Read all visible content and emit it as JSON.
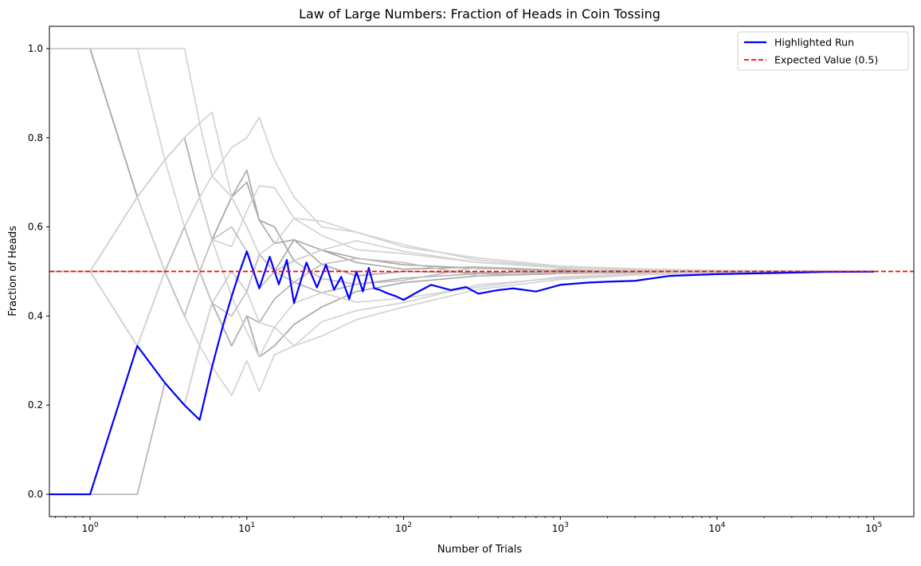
{
  "chart_data": {
    "type": "line",
    "title": "Law of Large Numbers: Fraction of Heads in Coin Tossing",
    "xlabel": "Number of Trials",
    "ylabel": "Fraction of Heads",
    "x_scale": "log",
    "xlim": [
      0.55,
      180000
    ],
    "ylim": [
      -0.05,
      1.05
    ],
    "x_ticks": [
      {
        "value": 1,
        "label": "10^0"
      },
      {
        "value": 10,
        "label": "10^1"
      },
      {
        "value": 100,
        "label": "10^2"
      },
      {
        "value": 1000,
        "label": "10^3"
      },
      {
        "value": 10000,
        "label": "10^4"
      },
      {
        "value": 100000,
        "label": "10^5"
      }
    ],
    "y_ticks": [
      0.0,
      0.2,
      0.4,
      0.6,
      0.8,
      1.0
    ],
    "y_tick_labels": [
      "0.0",
      "0.2",
      "0.4",
      "0.6",
      "0.8",
      "1.0"
    ],
    "grid": false,
    "legend_position": "top-right",
    "legend": [
      {
        "label": "Highlighted Run",
        "color": "#0000ff",
        "style": "solid"
      },
      {
        "label": "Expected Value (0.5)",
        "color": "#ff0000",
        "style": "dashed"
      }
    ],
    "reference_line": {
      "y": 0.5,
      "color": "#ff0000",
      "style": "dashed"
    },
    "highlight_series": {
      "name": "Highlighted Run",
      "color": "#0000ff",
      "x": [
        0.55,
        1,
        2,
        3,
        4,
        5,
        6,
        7,
        8,
        9,
        10,
        12,
        14,
        16,
        18,
        20,
        24,
        28,
        32,
        36,
        40,
        45,
        50,
        55,
        60,
        65,
        70,
        80,
        90,
        100,
        120,
        150,
        200,
        250,
        300,
        400,
        500,
        700,
        1000,
        1500,
        2000,
        3000,
        5000,
        7000,
        10000,
        20000,
        50000,
        100000
      ],
      "y": [
        0.0,
        0.0,
        0.333,
        0.25,
        0.2,
        0.167,
        0.286,
        0.375,
        0.444,
        0.5,
        0.545,
        0.462,
        0.533,
        0.471,
        0.526,
        0.429,
        0.52,
        0.464,
        0.515,
        0.459,
        0.488,
        0.438,
        0.5,
        0.455,
        0.508,
        0.462,
        0.459,
        0.45,
        0.444,
        0.436,
        0.452,
        0.47,
        0.458,
        0.465,
        0.45,
        0.458,
        0.462,
        0.455,
        0.47,
        0.475,
        0.477,
        0.479,
        0.49,
        0.492,
        0.494,
        0.496,
        0.499,
        0.4995
      ]
    },
    "background_series": [
      {
        "color": "#a9a9a9",
        "x": [
          0.55,
          1,
          2,
          3,
          4,
          5,
          6,
          8,
          10,
          12,
          15,
          20,
          30,
          50,
          100,
          300,
          1000,
          3000,
          10000,
          100000
        ],
        "y": [
          1.0,
          1.0,
          0.667,
          0.75,
          0.8,
          0.667,
          0.571,
          0.667,
          0.7,
          0.615,
          0.6,
          0.524,
          0.548,
          0.53,
          0.515,
          0.507,
          0.503,
          0.501,
          0.5005,
          0.5
        ]
      },
      {
        "color": "#a9a9a9",
        "x": [
          0.55,
          1,
          2,
          3,
          4,
          5,
          6,
          8,
          10,
          12,
          15,
          20,
          30,
          50,
          100,
          300,
          1000,
          3000,
          10000,
          100000
        ],
        "y": [
          0.5,
          0.5,
          0.333,
          0.5,
          0.4,
          0.333,
          0.429,
          0.333,
          0.4,
          0.308,
          0.333,
          0.381,
          0.42,
          0.455,
          0.475,
          0.49,
          0.495,
          0.498,
          0.4995,
          0.5
        ]
      },
      {
        "color": "#a9a9a9",
        "x": [
          0.55,
          1,
          2,
          3,
          4,
          5,
          6,
          8,
          10,
          12,
          15,
          20,
          30,
          50,
          100,
          300,
          1000,
          3000,
          10000,
          100000
        ],
        "y": [
          0.5,
          0.5,
          0.667,
          0.5,
          0.6,
          0.5,
          0.429,
          0.5,
          0.455,
          0.538,
          0.5,
          0.571,
          0.548,
          0.52,
          0.505,
          0.51,
          0.502,
          0.5,
          0.5,
          0.5
        ]
      },
      {
        "color": "#a9a9a9",
        "x": [
          0.55,
          1,
          2,
          3,
          4,
          5,
          6,
          8,
          10,
          12,
          15,
          20,
          30,
          50,
          100,
          300,
          1000,
          3000,
          10000,
          100000
        ],
        "y": [
          1.0,
          1.0,
          0.667,
          0.5,
          0.6,
          0.667,
          0.571,
          0.667,
          0.727,
          0.615,
          0.563,
          0.571,
          0.516,
          0.49,
          0.5,
          0.497,
          0.5,
          0.5,
          0.5,
          0.5
        ]
      },
      {
        "color": "#b3b3b3",
        "x": [
          0.55,
          1,
          2,
          3,
          4,
          5,
          6,
          8,
          10,
          12,
          15,
          20,
          30,
          50,
          100,
          300,
          1000,
          3000,
          10000,
          100000
        ],
        "y": [
          0.0,
          0.0,
          0.0,
          0.25,
          0.2,
          0.333,
          0.429,
          0.333,
          0.4,
          0.385,
          0.438,
          0.476,
          0.452,
          0.471,
          0.485,
          0.495,
          0.498,
          0.5,
          0.5,
          0.5
        ]
      },
      {
        "color": "#d3d3d3",
        "x": [
          0.55,
          1,
          2,
          3,
          4,
          5,
          6,
          8,
          10,
          12,
          15,
          20,
          30,
          50,
          100,
          300,
          1000,
          3000,
          10000,
          100000
        ],
        "y": [
          1.0,
          1.0,
          1.0,
          1.0,
          1.0,
          0.833,
          0.714,
          0.667,
          0.6,
          0.538,
          0.5,
          0.524,
          0.548,
          0.569,
          0.545,
          0.52,
          0.51,
          0.505,
          0.501,
          0.5
        ]
      },
      {
        "color": "#d3d3d3",
        "x": [
          0.55,
          1,
          2,
          3,
          4,
          5,
          6,
          8,
          10,
          12,
          15,
          20,
          30,
          50,
          100,
          300,
          1000,
          3000,
          10000,
          100000
        ],
        "y": [
          1.0,
          1.0,
          1.0,
          0.75,
          0.6,
          0.667,
          0.714,
          0.778,
          0.8,
          0.846,
          0.75,
          0.667,
          0.6,
          0.588,
          0.555,
          0.53,
          0.512,
          0.506,
          0.502,
          0.5
        ]
      },
      {
        "color": "#d3d3d3",
        "x": [
          0.55,
          1,
          2,
          3,
          4,
          5,
          6,
          8,
          10,
          12,
          15,
          20,
          30,
          50,
          100,
          300,
          1000,
          3000,
          10000,
          100000
        ],
        "y": [
          0.5,
          0.5,
          0.667,
          0.75,
          0.8,
          0.833,
          0.857,
          0.667,
          0.6,
          0.538,
          0.563,
          0.619,
          0.581,
          0.549,
          0.54,
          0.52,
          0.508,
          0.504,
          0.501,
          0.5
        ]
      },
      {
        "color": "#d3d3d3",
        "x": [
          0.55,
          1,
          2,
          3,
          4,
          5,
          6,
          8,
          10,
          12,
          15,
          20,
          30,
          50,
          100,
          300,
          1000,
          3000,
          10000,
          100000
        ],
        "y": [
          0.5,
          0.5,
          0.333,
          0.25,
          0.2,
          0.333,
          0.286,
          0.222,
          0.3,
          0.231,
          0.313,
          0.333,
          0.387,
          0.412,
          0.43,
          0.47,
          0.485,
          0.494,
          0.498,
          0.5
        ]
      },
      {
        "color": "#d3d3d3",
        "x": [
          0.55,
          1,
          2,
          3,
          4,
          5,
          6,
          8,
          10,
          12,
          15,
          20,
          30,
          50,
          100,
          300,
          1000,
          3000,
          10000,
          100000
        ],
        "y": [
          0.0,
          0.0,
          0.333,
          0.5,
          0.4,
          0.333,
          0.429,
          0.5,
          0.455,
          0.385,
          0.375,
          0.429,
          0.452,
          0.431,
          0.44,
          0.465,
          0.488,
          0.495,
          0.499,
          0.5
        ]
      },
      {
        "color": "#d3d3d3",
        "x": [
          0.55,
          1,
          2,
          3,
          4,
          5,
          6,
          8,
          10,
          12,
          15,
          20,
          30,
          50,
          100,
          300,
          1000,
          3000,
          10000,
          100000
        ],
        "y": [
          0.5,
          0.5,
          0.667,
          0.5,
          0.6,
          0.667,
          0.571,
          0.556,
          0.636,
          0.692,
          0.688,
          0.619,
          0.613,
          0.588,
          0.56,
          0.525,
          0.51,
          0.503,
          0.501,
          0.5
        ]
      },
      {
        "color": "#d3d3d3",
        "x": [
          0.55,
          1,
          2,
          3,
          4,
          5,
          6,
          8,
          10,
          12,
          15,
          20,
          30,
          50,
          100,
          300,
          1000,
          3000,
          10000,
          100000
        ],
        "y": [
          0.5,
          0.5,
          0.333,
          0.5,
          0.4,
          0.5,
          0.571,
          0.444,
          0.364,
          0.308,
          0.375,
          0.333,
          0.355,
          0.392,
          0.42,
          0.46,
          0.482,
          0.492,
          0.497,
          0.5
        ]
      },
      {
        "color": "#c0c0c0",
        "x": [
          0.55,
          1,
          2,
          3,
          4,
          5,
          6,
          8,
          10,
          12,
          15,
          20,
          30,
          50,
          100,
          300,
          1000,
          3000,
          10000,
          100000
        ],
        "y": [
          0.5,
          0.5,
          0.5,
          0.5,
          0.6,
          0.5,
          0.571,
          0.6,
          0.545,
          0.462,
          0.5,
          0.476,
          0.516,
          0.529,
          0.52,
          0.49,
          0.505,
          0.499,
          0.501,
          0.5
        ]
      },
      {
        "color": "#c0c0c0",
        "x": [
          0.55,
          1,
          2,
          3,
          4,
          5,
          6,
          8,
          10,
          12,
          15,
          20,
          30,
          50,
          100,
          300,
          1000,
          3000,
          10000,
          100000
        ],
        "y": [
          0.5,
          0.5,
          0.5,
          0.5,
          0.4,
          0.5,
          0.429,
          0.4,
          0.455,
          0.538,
          0.5,
          0.524,
          0.484,
          0.471,
          0.48,
          0.51,
          0.495,
          0.501,
          0.499,
          0.5
        ]
      }
    ]
  }
}
